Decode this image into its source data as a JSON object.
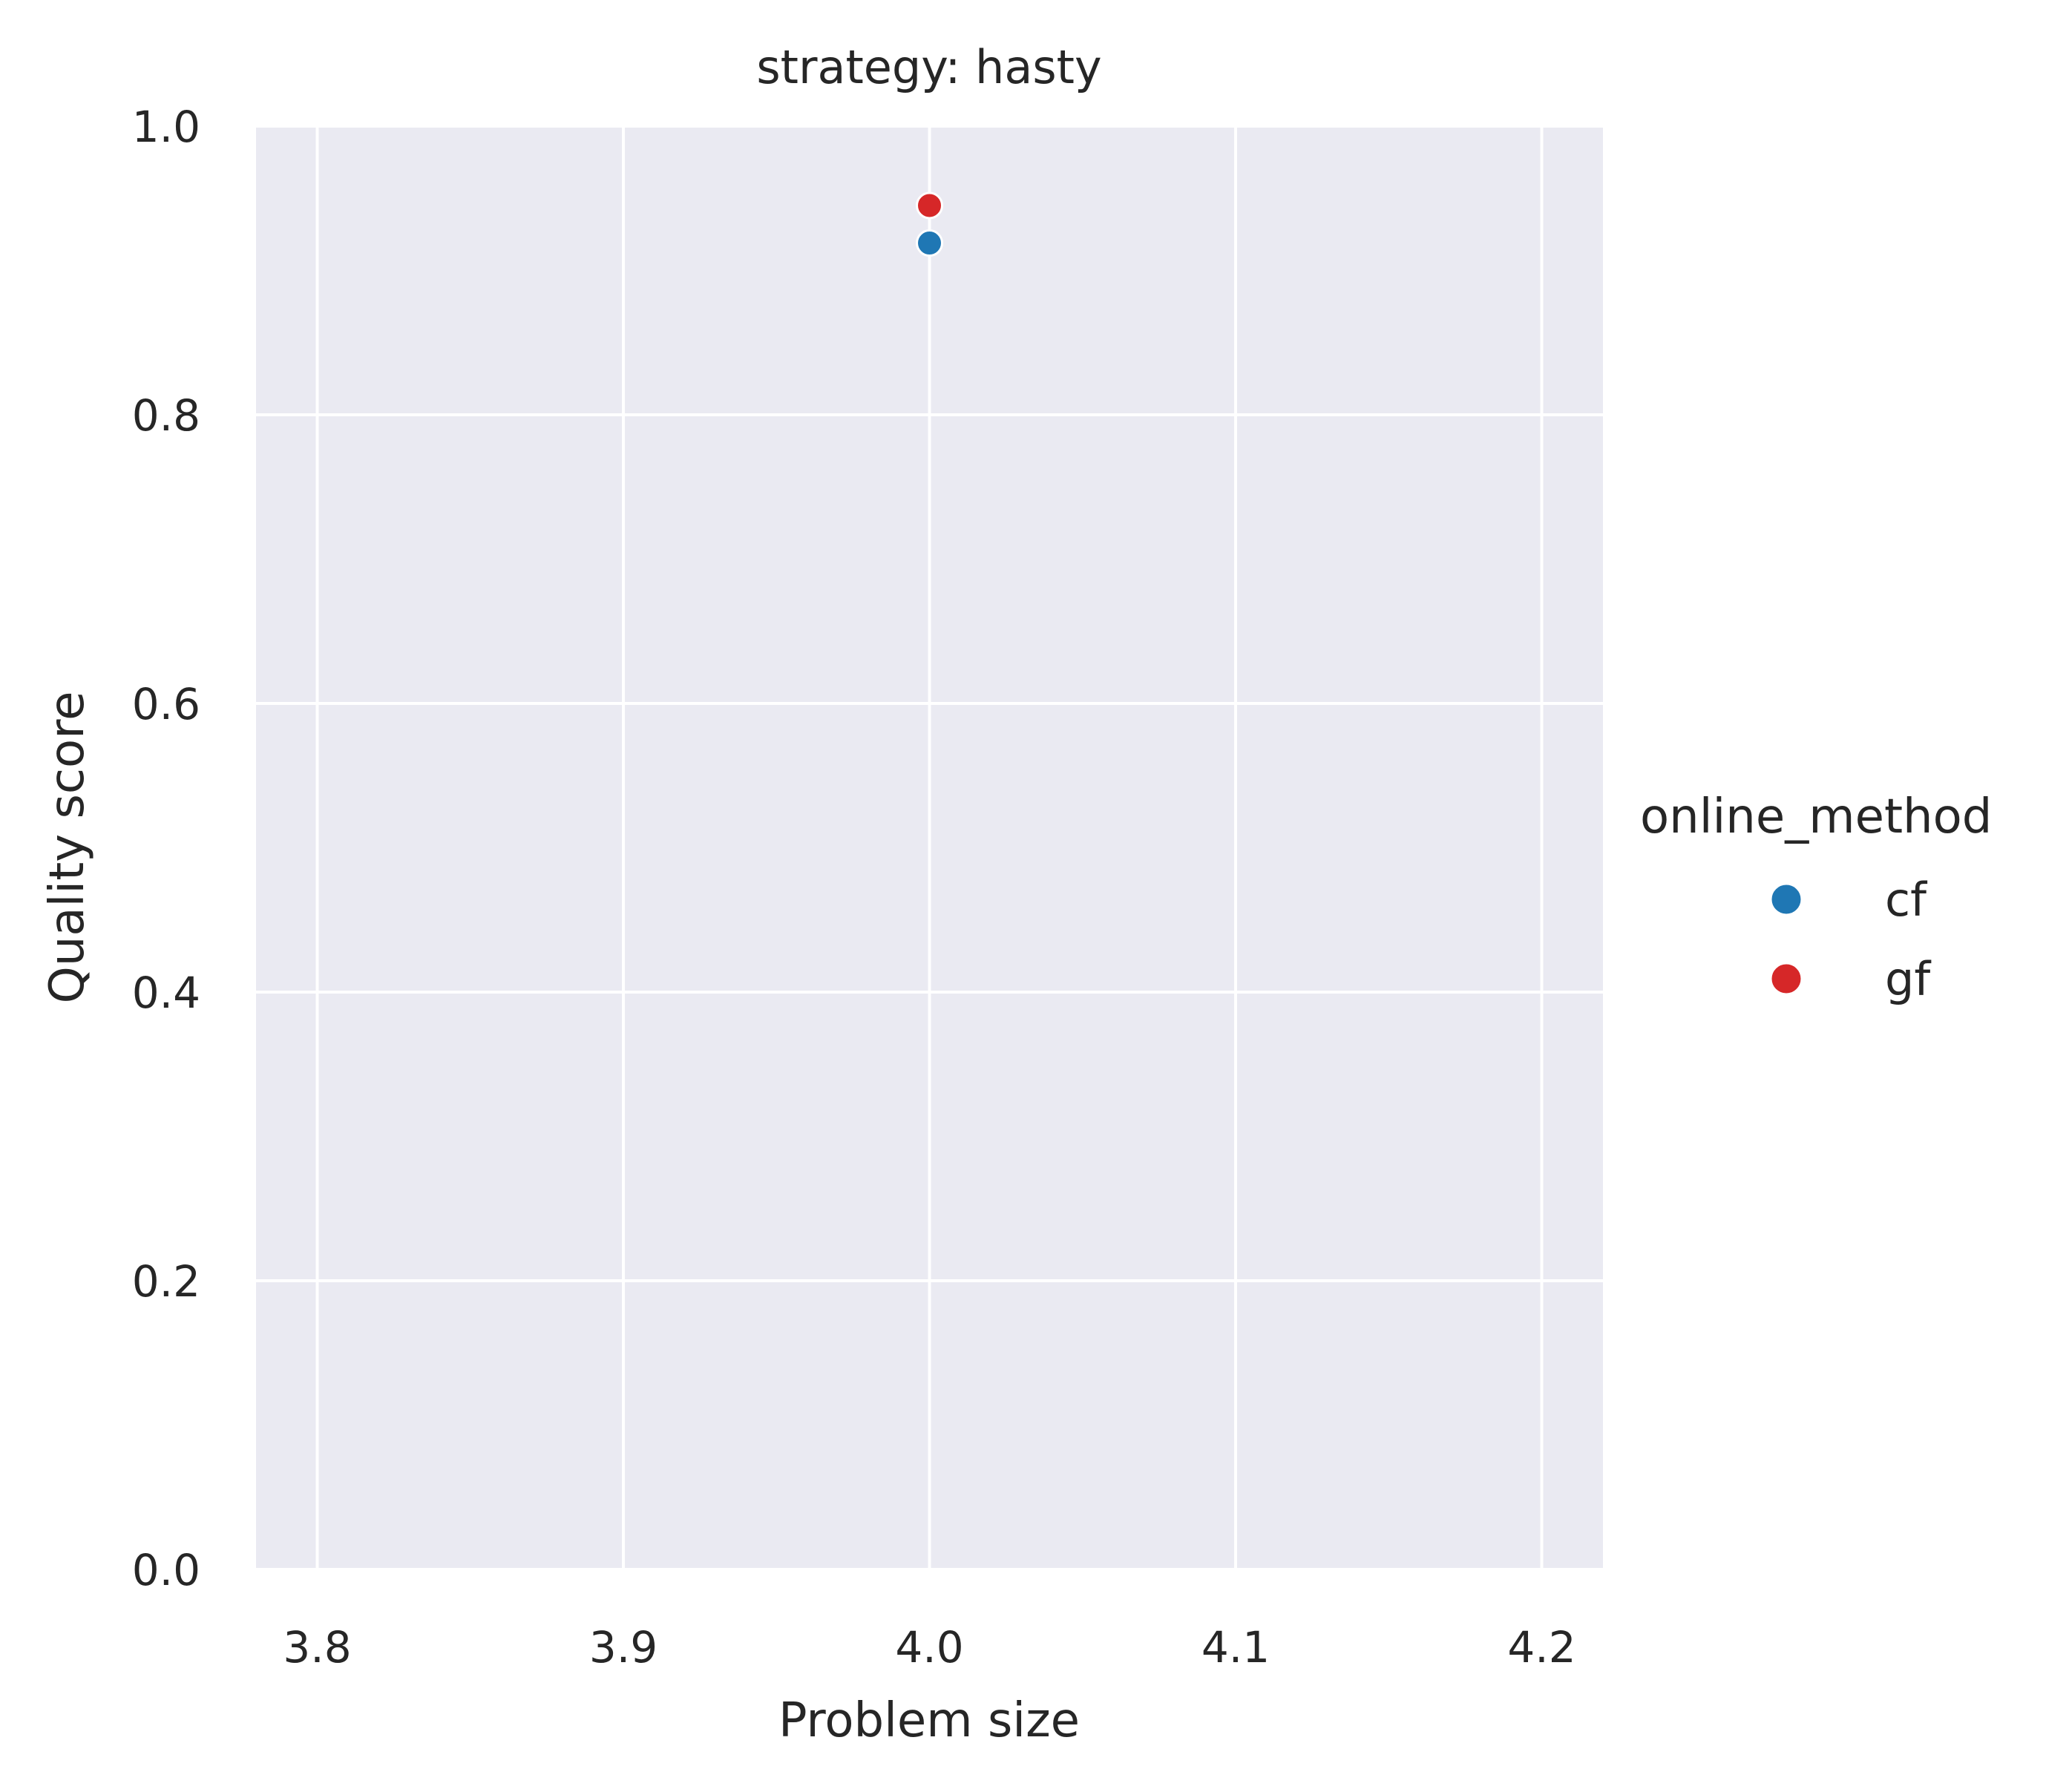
{
  "chart_data": {
    "type": "scatter",
    "title": "strategy: hasty",
    "xlabel": "Problem size",
    "ylabel": "Quality score",
    "xlim": [
      3.78,
      4.22
    ],
    "ylim": [
      0.0,
      1.0
    ],
    "xticks": [
      3.8,
      3.9,
      4.0,
      4.1,
      4.2
    ],
    "xtick_labels": [
      "3.8",
      "3.9",
      "4.0",
      "4.1",
      "4.2"
    ],
    "yticks": [
      0.0,
      0.2,
      0.4,
      0.6,
      0.8,
      1.0
    ],
    "ytick_labels": [
      "0.0",
      "0.2",
      "0.4",
      "0.6",
      "0.8",
      "1.0"
    ],
    "grid": true,
    "legend": {
      "title": "online_method",
      "placement": "outside-right"
    },
    "series": [
      {
        "name": "cf",
        "color": "#1f77b4",
        "x": [
          4.0
        ],
        "y": [
          0.919
        ]
      },
      {
        "name": "gf",
        "color": "#d62728",
        "x": [
          4.0
        ],
        "y": [
          0.945
        ]
      }
    ]
  }
}
